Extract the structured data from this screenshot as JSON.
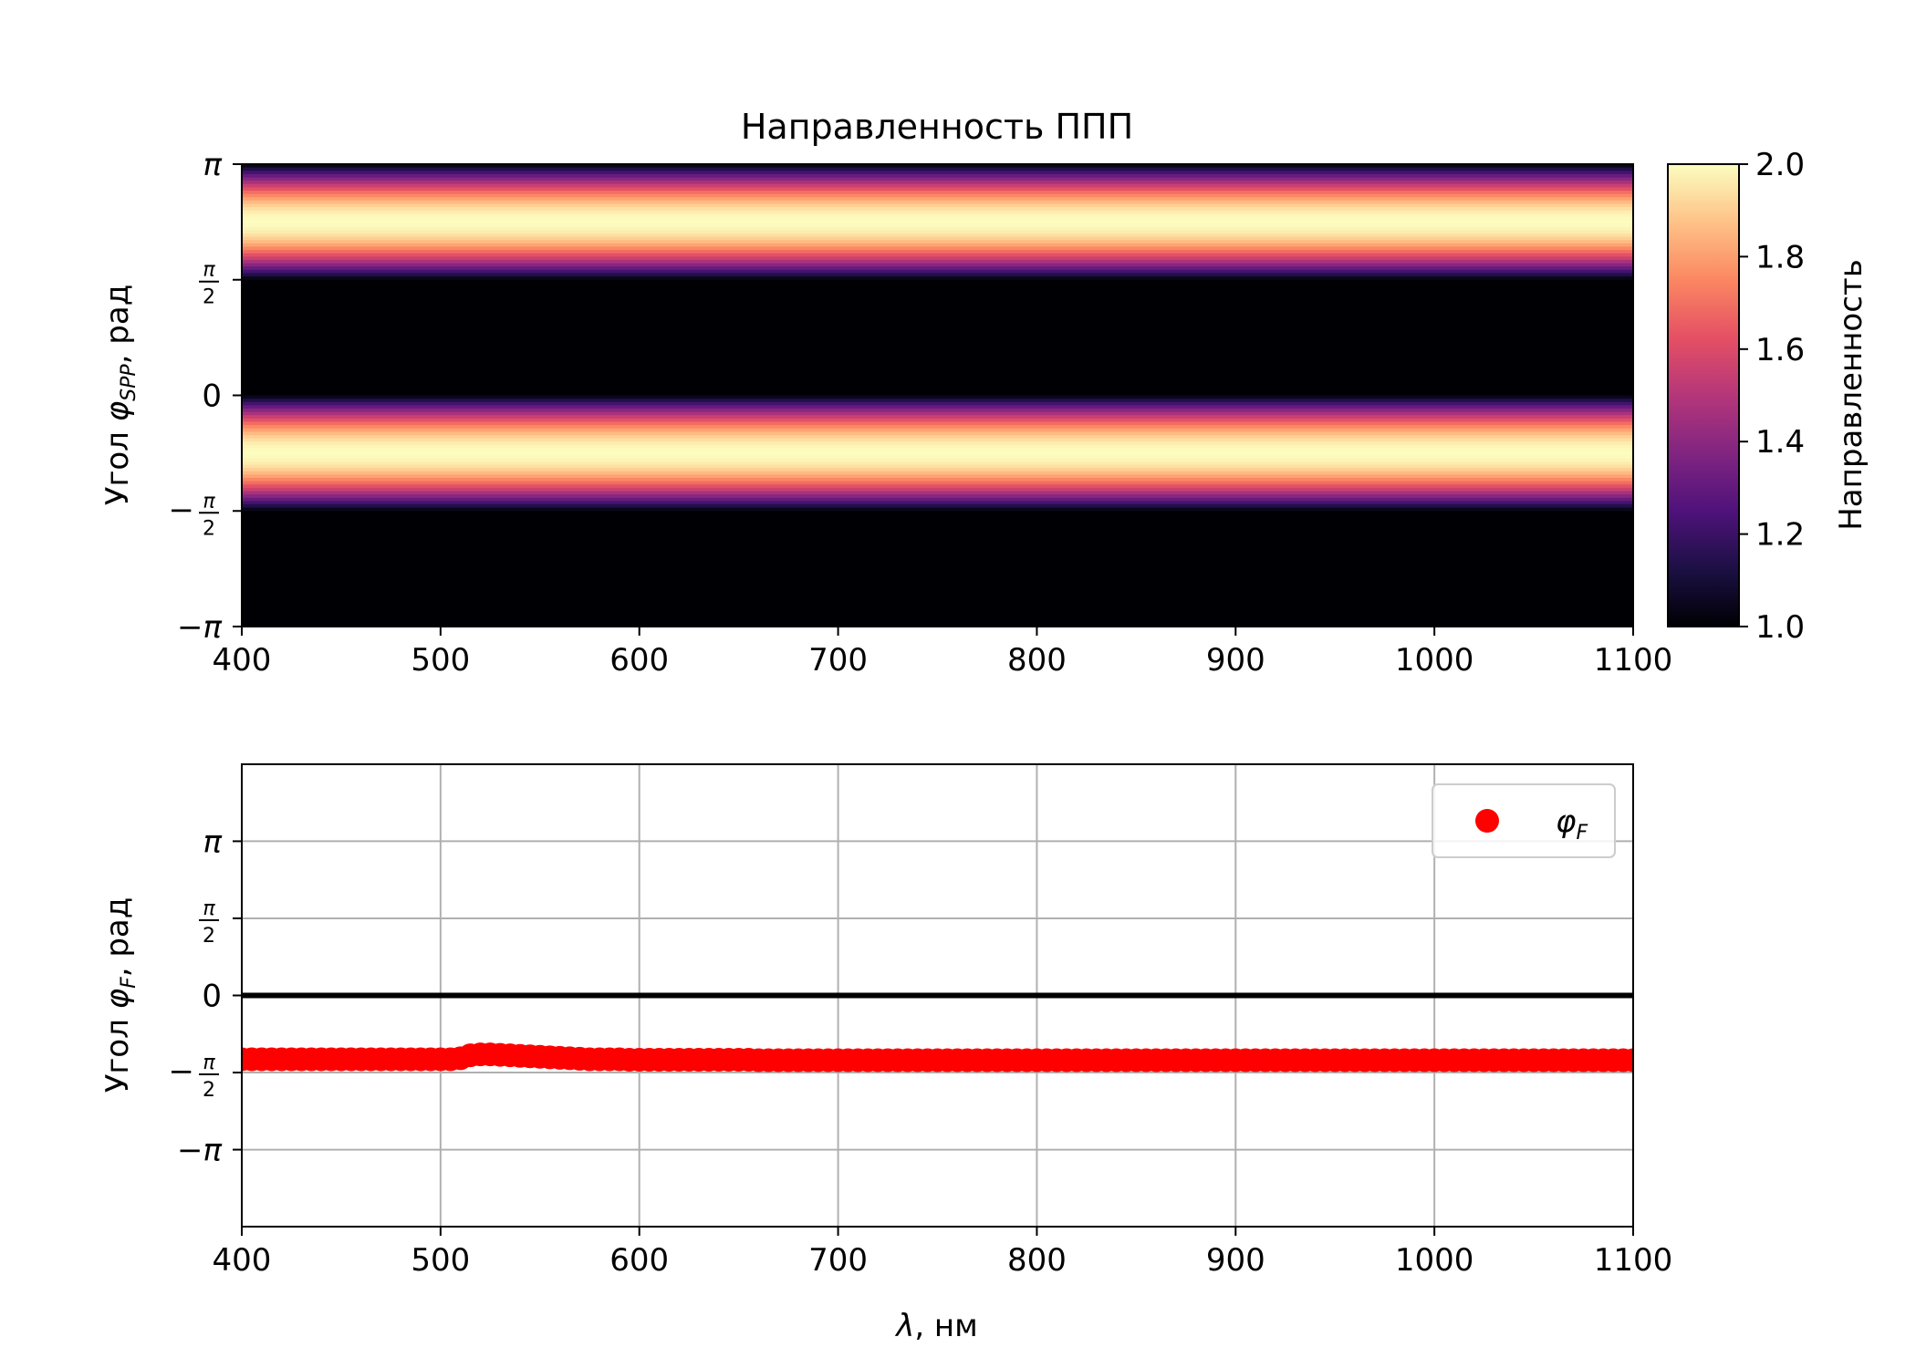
{
  "chart_data": [
    {
      "type": "heatmap",
      "title": "Направленность ППП",
      "xlabel": "",
      "ylabel": "Угол φSPP, рад",
      "ylabel_parts": {
        "prefix": "Угол ",
        "symbol": "φ",
        "subscript": "SPP",
        "suffix": ", рад"
      },
      "xlim": [
        400,
        1100
      ],
      "ylim": [
        -3.14159,
        3.14159
      ],
      "xticks": [
        400,
        500,
        600,
        700,
        800,
        900,
        1000,
        1100
      ],
      "xtick_labels": [
        "400",
        "500",
        "600",
        "700",
        "800",
        "900",
        "1000",
        "1100"
      ],
      "yticks": [
        {
          "value": 3.14159,
          "label": "π",
          "kind": "pi"
        },
        {
          "value": 1.5708,
          "label": "π/2",
          "kind": "frac",
          "sign": ""
        },
        {
          "value": 0,
          "label": "0",
          "kind": "plain"
        },
        {
          "value": -1.5708,
          "label": "−π/2",
          "kind": "frac",
          "sign": "−"
        },
        {
          "value": -3.14159,
          "label": "−π",
          "kind": "pi"
        }
      ],
      "colormap": "magma",
      "colorbar": {
        "label": "Направленность",
        "range": [
          1.0,
          2.0
        ],
        "ticks": [
          "1.0",
          "1.2",
          "1.4",
          "1.6",
          "1.8",
          "2.0"
        ],
        "tick_values": [
          1.0,
          1.2,
          1.4,
          1.6,
          1.8,
          2.0
        ]
      },
      "profile": {
        "description_of_values": "directivity vs angle, same for every wavelength",
        "formula": "1 + sin(phi) for phi in [0, pi]; 1 otherwise"
      }
    },
    {
      "type": "scatter",
      "title": "",
      "xlabel": "λ, нм",
      "xlabel_parts": {
        "symbol": "λ",
        "suffix": ", нм"
      },
      "ylabel": "Угол φF, рад",
      "ylabel_parts": {
        "prefix": "Угол ",
        "symbol": "φ",
        "subscript": "F",
        "suffix": ", рад"
      },
      "xlim": [
        400,
        1100
      ],
      "ylim": [
        -4.71,
        4.71
      ],
      "grid": true,
      "legend_placement": "top-right",
      "xticks": [
        400,
        500,
        600,
        700,
        800,
        900,
        1000,
        1100
      ],
      "xtick_labels": [
        "400",
        "500",
        "600",
        "700",
        "800",
        "900",
        "1000",
        "1100"
      ],
      "yticks": [
        {
          "value": 3.14159,
          "label": "π",
          "kind": "pi"
        },
        {
          "value": 1.5708,
          "label": "π/2",
          "kind": "frac",
          "sign": ""
        },
        {
          "value": 0,
          "label": "0",
          "kind": "plain"
        },
        {
          "value": -1.5708,
          "label": "−π/2",
          "kind": "frac",
          "sign": "−"
        },
        {
          "value": -3.14159,
          "label": "−π",
          "kind": "pi"
        }
      ],
      "reference_line": {
        "y": 0,
        "color": "#000000"
      },
      "series": [
        {
          "name": "φF",
          "name_parts": {
            "symbol": "φ",
            "subscript": "F"
          },
          "color": "#ff0000",
          "marker": "circle",
          "x": [
            400,
            405,
            410,
            415,
            420,
            425,
            430,
            435,
            440,
            445,
            450,
            455,
            460,
            465,
            470,
            475,
            480,
            485,
            490,
            495,
            500,
            505,
            510,
            515,
            520,
            525,
            530,
            535,
            540,
            545,
            550,
            555,
            560,
            565,
            570,
            575,
            580,
            585,
            590,
            595,
            600,
            605,
            610,
            615,
            620,
            625,
            630,
            635,
            640,
            645,
            650,
            655,
            660,
            665,
            670,
            675,
            680,
            685,
            690,
            695,
            700,
            705,
            710,
            715,
            720,
            725,
            730,
            735,
            740,
            745,
            750,
            755,
            760,
            765,
            770,
            775,
            780,
            785,
            790,
            795,
            800,
            805,
            810,
            815,
            820,
            825,
            830,
            835,
            840,
            845,
            850,
            855,
            860,
            865,
            870,
            875,
            880,
            885,
            890,
            895,
            900,
            905,
            910,
            915,
            920,
            925,
            930,
            935,
            940,
            945,
            950,
            955,
            960,
            965,
            970,
            975,
            980,
            985,
            990,
            995,
            1000,
            1005,
            1010,
            1015,
            1020,
            1025,
            1030,
            1035,
            1040,
            1045,
            1050,
            1055,
            1060,
            1065,
            1070,
            1075,
            1080,
            1085,
            1090,
            1095,
            1100
          ],
          "y": [
            -1.3,
            -1.3,
            -1.3,
            -1.3,
            -1.3,
            -1.3,
            -1.3,
            -1.3,
            -1.3,
            -1.3,
            -1.3,
            -1.3,
            -1.3,
            -1.3,
            -1.3,
            -1.3,
            -1.3,
            -1.3,
            -1.3,
            -1.3,
            -1.3,
            -1.3,
            -1.28,
            -1.22,
            -1.2,
            -1.2,
            -1.21,
            -1.22,
            -1.23,
            -1.24,
            -1.25,
            -1.26,
            -1.27,
            -1.28,
            -1.29,
            -1.3,
            -1.3,
            -1.3,
            -1.3,
            -1.31,
            -1.31,
            -1.31,
            -1.31,
            -1.31,
            -1.31,
            -1.31,
            -1.31,
            -1.31,
            -1.31,
            -1.31,
            -1.31,
            -1.31,
            -1.32,
            -1.32,
            -1.32,
            -1.32,
            -1.32,
            -1.32,
            -1.32,
            -1.32,
            -1.32,
            -1.32,
            -1.32,
            -1.32,
            -1.32,
            -1.32,
            -1.32,
            -1.32,
            -1.32,
            -1.32,
            -1.32,
            -1.32,
            -1.32,
            -1.32,
            -1.32,
            -1.32,
            -1.32,
            -1.32,
            -1.32,
            -1.32,
            -1.32,
            -1.32,
            -1.32,
            -1.32,
            -1.32,
            -1.32,
            -1.32,
            -1.32,
            -1.32,
            -1.32,
            -1.32,
            -1.32,
            -1.32,
            -1.32,
            -1.32,
            -1.32,
            -1.32,
            -1.32,
            -1.32,
            -1.32,
            -1.32,
            -1.32,
            -1.32,
            -1.32,
            -1.32,
            -1.32,
            -1.32,
            -1.32,
            -1.32,
            -1.32,
            -1.32,
            -1.32,
            -1.32,
            -1.32,
            -1.32,
            -1.32,
            -1.32,
            -1.32,
            -1.32,
            -1.32,
            -1.32,
            -1.32,
            -1.32,
            -1.32,
            -1.32,
            -1.32,
            -1.32,
            -1.32,
            -1.32,
            -1.32,
            -1.32,
            -1.32,
            -1.32,
            -1.32,
            -1.32,
            -1.32,
            -1.32,
            -1.32,
            -1.32,
            -1.32,
            -1.32
          ]
        }
      ]
    }
  ]
}
